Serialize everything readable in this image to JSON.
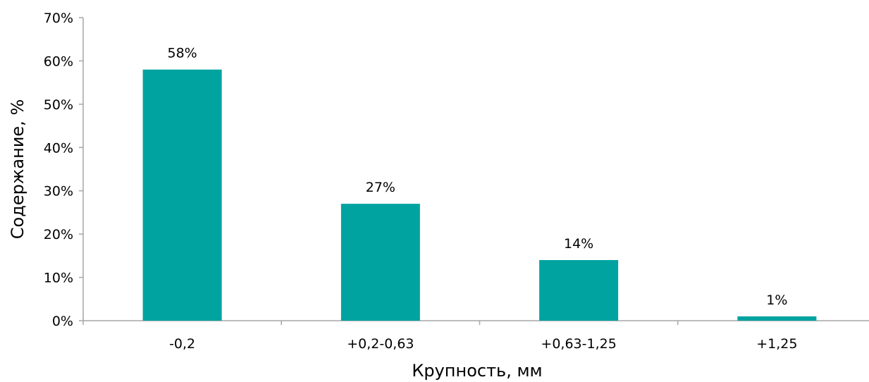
{
  "chart_data": {
    "type": "bar",
    "categories": [
      "-0,2",
      "+0,2-0,63",
      "+0,63-1,25",
      "+1,25"
    ],
    "values": [
      58,
      27,
      14,
      1
    ],
    "data_labels": [
      "58%",
      "27%",
      "14%",
      "1%"
    ],
    "title": "",
    "xlabel": "Крупность,  мм",
    "ylabel": "Содержание, %",
    "ylim": [
      0,
      70
    ],
    "y_ticks": [
      0,
      10,
      20,
      30,
      40,
      50,
      60,
      70
    ],
    "y_tick_labels": [
      "0%",
      "10%",
      "20%",
      "30%",
      "40%",
      "50%",
      "60%",
      "70%"
    ],
    "grid": false,
    "legend": "none",
    "bar_color": "#00a3a0"
  }
}
